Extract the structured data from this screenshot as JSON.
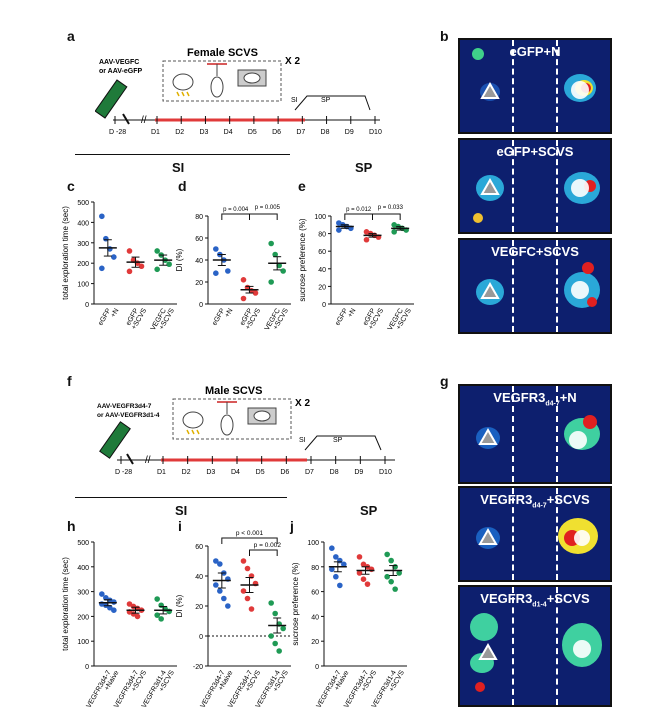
{
  "panel_letters": [
    "a",
    "b",
    "c",
    "d",
    "e",
    "f",
    "g",
    "h",
    "i",
    "j"
  ],
  "top": {
    "title": "Female SCVS",
    "repeat": "X 2",
    "virus": [
      "AAV-VEGFC",
      "or AAV-eGFP"
    ],
    "timeline": [
      "D -28",
      "D1",
      "D2",
      "D3",
      "D4",
      "D5",
      "D6",
      "D7",
      "D8",
      "D9",
      "D10"
    ],
    "si_label": "SI",
    "sp_label": "SP"
  },
  "bottom": {
    "title": "Male SCVS",
    "repeat": "X 2",
    "virus": [
      "AAV-VEGFR3d4-7",
      "or AAV-VEGFR3d1-4"
    ],
    "timeline": [
      "D -28",
      "D1",
      "D2",
      "D3",
      "D4",
      "D5",
      "D6",
      "D7",
      "D8",
      "D9",
      "D10"
    ],
    "si_label": "SI",
    "sp_label": "SP"
  },
  "section_labels": {
    "si_top": "SI",
    "sp_top": "SP",
    "si_bottom": "SI",
    "sp_bottom": "SP"
  },
  "heatmaps_b": [
    "eGFP+N",
    "eGFP+SCVS",
    "VEGFC+SCVS"
  ],
  "heatmaps_g": [
    {
      "main": "VEGFR3",
      "sub": "d4-7",
      "rest": "+N"
    },
    {
      "main": "VEGFR3",
      "sub": "d4-7",
      "rest": "+SCVS"
    },
    {
      "main": "VEGFR3",
      "sub": "d1-4",
      "rest": "+SCVS"
    }
  ],
  "colors": {
    "blue": "#2a63c6",
    "red": "#e03a3a",
    "green": "#1f9a55",
    "heat_bg": "#0d1f6e"
  },
  "chart_data": [
    {
      "panel": "c",
      "type": "scatter",
      "ylabel": "total exploration time (sec)",
      "ylim": [
        0,
        500
      ],
      "yticks": [
        0,
        100,
        200,
        300,
        400,
        500
      ],
      "categories": [
        "eGFP +N",
        "eGFP +SCVS",
        "VEGFC +SCVS"
      ],
      "means": [
        275,
        205,
        215
      ],
      "sems": [
        40,
        25,
        25
      ],
      "points": [
        [
          430,
          320,
          270,
          230,
          175
        ],
        [
          260,
          215,
          200,
          185,
          160
        ],
        [
          260,
          240,
          215,
          195,
          170
        ]
      ],
      "annotations": []
    },
    {
      "panel": "d",
      "type": "scatter",
      "ylabel": "DI (%)",
      "ylim": [
        0,
        80
      ],
      "yticks": [
        0,
        20,
        40,
        60,
        80
      ],
      "categories": [
        "eGFP +N",
        "eGFP +SCVS",
        "VEGFC +SCVS"
      ],
      "means": [
        40,
        13,
        37
      ],
      "sems": [
        5,
        3,
        6
      ],
      "points": [
        [
          50,
          45,
          40,
          30,
          28
        ],
        [
          22,
          15,
          12,
          10,
          5
        ],
        [
          55,
          45,
          35,
          30,
          20
        ]
      ],
      "annotations": [
        "p = 0.004",
        "p = 0.005"
      ]
    },
    {
      "panel": "e",
      "type": "scatter",
      "ylabel": "sucrose preference (%)",
      "ylim": [
        0,
        100
      ],
      "yticks": [
        0,
        20,
        40,
        60,
        80,
        100
      ],
      "categories": [
        "eGFP +N",
        "eGFP +SCVS",
        "VEGFC +SCVS"
      ],
      "means": [
        88,
        78,
        86
      ],
      "sems": [
        2,
        2,
        2
      ],
      "points": [
        [
          92,
          90,
          88,
          86,
          84
        ],
        [
          82,
          80,
          78,
          76,
          73
        ],
        [
          90,
          88,
          86,
          84,
          82
        ]
      ],
      "annotations": [
        "p = 0.012",
        "p = 0.033"
      ]
    },
    {
      "panel": "h",
      "type": "scatter",
      "ylabel": "total exploration time (sec)",
      "ylim": [
        0,
        500
      ],
      "yticks": [
        0,
        100,
        200,
        300,
        400,
        500
      ],
      "categories": [
        "VEGFR3d4-7 +Naive",
        "VEGFR3d4-7 +SCVS",
        "VEGFR3d1-4 +SCVS"
      ],
      "means": [
        255,
        225,
        225
      ],
      "sems": [
        12,
        12,
        15
      ],
      "points": [
        [
          290,
          275,
          265,
          258,
          250,
          245,
          235,
          225
        ],
        [
          250,
          240,
          232,
          225,
          218,
          210,
          200
        ],
        [
          270,
          245,
          230,
          220,
          205,
          190
        ]
      ],
      "annotations": []
    },
    {
      "panel": "i",
      "type": "scatter",
      "ylabel": "DI (%)",
      "ylim": [
        -20,
        60
      ],
      "yticks": [
        -20,
        0,
        20,
        40,
        60
      ],
      "categories": [
        "VEGFR3d4-7 +Naive",
        "VEGFR3d4-7 +SCVS",
        "VEGFR3d1-4 +SCVS"
      ],
      "means": [
        37,
        34,
        7
      ],
      "sems": [
        5,
        5,
        5
      ],
      "points": [
        [
          50,
          48,
          42,
          38,
          34,
          30,
          25,
          20
        ],
        [
          50,
          45,
          40,
          35,
          30,
          25,
          18
        ],
        [
          22,
          15,
          8,
          5,
          0,
          -5,
          -10
        ]
      ],
      "annotations": [
        "p < 0.001",
        "p = 0.002"
      ]
    },
    {
      "panel": "j",
      "type": "scatter",
      "ylabel": "sucrose preference (%)",
      "ylim": [
        0,
        100
      ],
      "yticks": [
        0,
        20,
        40,
        60,
        80,
        100
      ],
      "categories": [
        "VEGFR3d4-7 +Naive",
        "VEGFR3d4-7 +SCVS",
        "VEGFR3d1-4 +SCVS"
      ],
      "means": [
        80,
        77,
        77
      ],
      "sems": [
        4,
        3,
        4
      ],
      "points": [
        [
          95,
          88,
          85,
          82,
          78,
          72,
          65
        ],
        [
          88,
          82,
          80,
          78,
          75,
          70,
          66
        ],
        [
          90,
          85,
          80,
          75,
          72,
          68,
          62
        ]
      ],
      "annotations": []
    }
  ]
}
